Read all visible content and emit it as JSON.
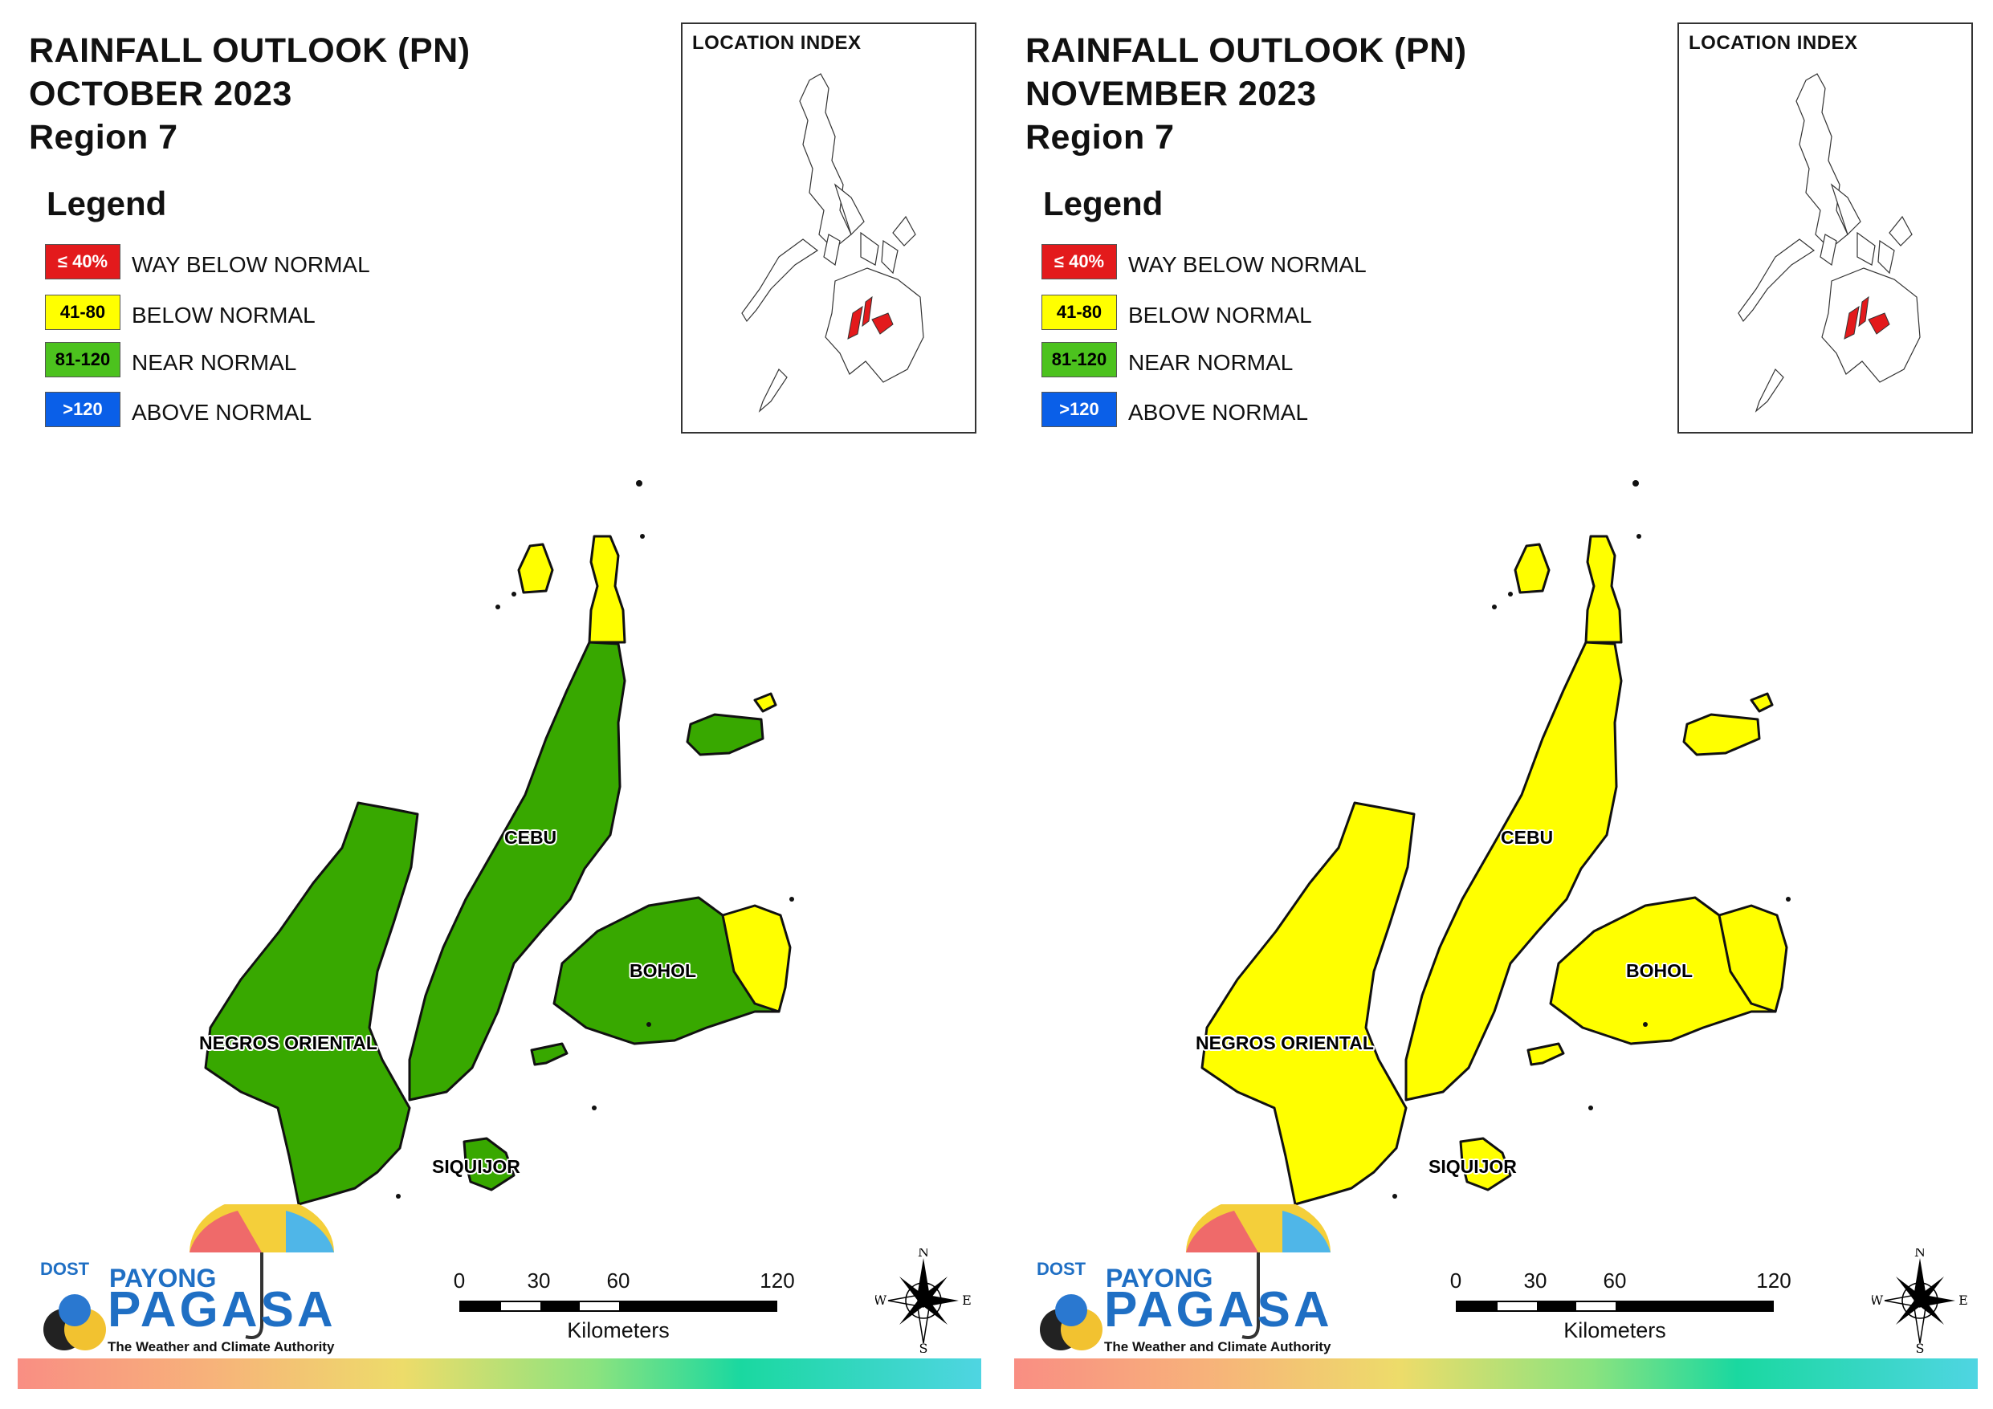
{
  "colors": {
    "way_below": "#e31a1c",
    "below": "#ffff00",
    "near": "#38a800",
    "above": "#0a5fe8",
    "brand_blue": "#1f6fc4"
  },
  "panels": [
    {
      "title_line1": "RAINFALL OUTLOOK (PN)",
      "title_line2": "OCTOBER 2023",
      "title_line3": "Region 7",
      "legend_title": "Legend",
      "legend": [
        {
          "range": "≤ 40%",
          "label": "WAY BELOW NORMAL",
          "color": "#e31a1c",
          "text_color": "#ffffff"
        },
        {
          "range": "41-80",
          "label": "BELOW NORMAL",
          "color": "#ffff00",
          "text_color": "#000000"
        },
        {
          "range": "81-120",
          "label": "NEAR NORMAL",
          "color": "#4cc21e",
          "text_color": "#000000"
        },
        {
          "range": ">120",
          "label": "ABOVE NORMAL",
          "color": "#0a5fe8",
          "text_color": "#ffffff"
        }
      ],
      "location_index_title": "LOCATION INDEX",
      "provinces": {
        "cebu": {
          "name": "CEBU",
          "color": "#38a800"
        },
        "negros_oriental": {
          "name": "NEGROS ORIENTAL",
          "color": "#38a800"
        },
        "bohol": {
          "name": "BOHOL",
          "color": "#38a800"
        },
        "siquijor": {
          "name": "SIQUIJOR",
          "color": "#38a800"
        },
        "north_cebu": {
          "color": "#ffff00"
        },
        "east_bohol": {
          "color": "#ffff00"
        },
        "camotes": {
          "color": "#38a800"
        }
      },
      "scale": {
        "ticks": [
          "0",
          "30",
          "60",
          "120"
        ],
        "unit": "Kilometers"
      },
      "compass": {
        "n": "N",
        "s": "S",
        "e": "E",
        "w": "W"
      },
      "logo": {
        "dost": "DOST",
        "payong": "PAYONG",
        "pagasa": "PAGASA",
        "tagline": "The Weather and Climate Authority"
      }
    },
    {
      "title_line1": "RAINFALL OUTLOOK (PN)",
      "title_line2": "NOVEMBER 2023",
      "title_line3": "Region 7",
      "legend_title": "Legend",
      "legend": [
        {
          "range": "≤ 40%",
          "label": "WAY BELOW NORMAL",
          "color": "#e31a1c",
          "text_color": "#ffffff"
        },
        {
          "range": "41-80",
          "label": "BELOW NORMAL",
          "color": "#ffff00",
          "text_color": "#000000"
        },
        {
          "range": "81-120",
          "label": "NEAR NORMAL",
          "color": "#4cc21e",
          "text_color": "#000000"
        },
        {
          "range": ">120",
          "label": "ABOVE NORMAL",
          "color": "#0a5fe8",
          "text_color": "#ffffff"
        }
      ],
      "location_index_title": "LOCATION INDEX",
      "provinces": {
        "cebu": {
          "name": "CEBU",
          "color": "#ffff00"
        },
        "negros_oriental": {
          "name": "NEGROS ORIENTAL",
          "color": "#ffff00"
        },
        "bohol": {
          "name": "BOHOL",
          "color": "#ffff00"
        },
        "siquijor": {
          "name": "SIQUIJOR",
          "color": "#ffff00"
        },
        "north_cebu": {
          "color": "#ffff00"
        },
        "east_bohol": {
          "color": "#ffff00"
        },
        "camotes": {
          "color": "#ffff00"
        }
      },
      "scale": {
        "ticks": [
          "0",
          "30",
          "60",
          "120"
        ],
        "unit": "Kilometers"
      },
      "compass": {
        "n": "N",
        "s": "S",
        "e": "E",
        "w": "W"
      },
      "logo": {
        "dost": "DOST",
        "payong": "PAYONG",
        "pagasa": "PAGASA",
        "tagline": "The Weather and Climate Authority"
      }
    }
  ]
}
